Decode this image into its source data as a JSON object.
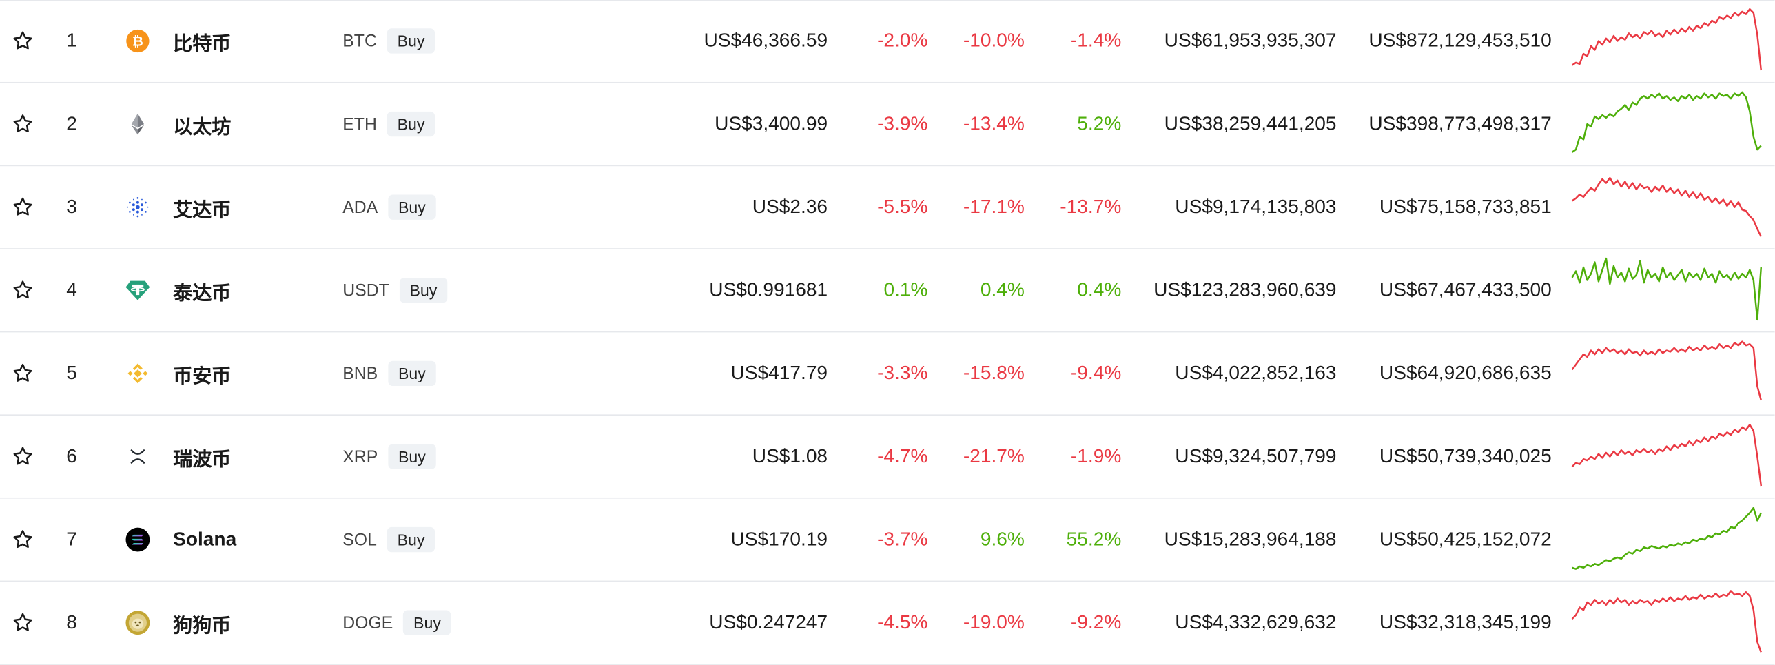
{
  "buy_label": "Buy",
  "colors": {
    "negative": "#ea3943",
    "positive": "#4eaf0a",
    "row_border": "#e6e8ec"
  },
  "rows": [
    {
      "rank": "1",
      "icon": "bitcoin-icon",
      "name": "比特币",
      "symbol": "BTC",
      "price": "US$46,366.59",
      "change_1h": "-2.0%",
      "change_24h": "-10.0%",
      "change_7d": "-1.4%",
      "volume_24h": "US$61,953,935,307",
      "market_cap": "US$872,129,453,510",
      "trend": [
        0.12,
        0.16,
        0.14,
        0.3,
        0.26,
        0.42,
        0.36,
        0.5,
        0.44,
        0.54,
        0.48,
        0.58,
        0.5,
        0.56,
        0.52,
        0.62,
        0.56,
        0.6,
        0.54,
        0.64,
        0.6,
        0.66,
        0.58,
        0.62,
        0.56,
        0.66,
        0.6,
        0.68,
        0.62,
        0.7,
        0.64,
        0.72,
        0.66,
        0.74,
        0.7,
        0.78,
        0.74,
        0.82,
        0.78,
        0.88,
        0.84,
        0.9,
        0.86,
        0.94,
        0.9,
        0.96,
        0.92,
        1.0,
        0.94,
        0.6,
        0.04
      ]
    },
    {
      "rank": "2",
      "icon": "ethereum-icon",
      "name": "以太坊",
      "symbol": "ETH",
      "price": "US$3,400.99",
      "change_1h": "-3.9%",
      "change_24h": "-13.4%",
      "change_7d": "5.2%",
      "volume_24h": "US$38,259,441,205",
      "market_cap": "US$398,773,498,317",
      "trend": [
        0.06,
        0.1,
        0.3,
        0.26,
        0.5,
        0.46,
        0.62,
        0.58,
        0.64,
        0.6,
        0.66,
        0.62,
        0.7,
        0.74,
        0.8,
        0.72,
        0.84,
        0.8,
        0.9,
        0.94,
        0.9,
        0.96,
        0.92,
        0.98,
        0.9,
        0.94,
        0.88,
        0.92,
        0.86,
        0.94,
        0.9,
        0.96,
        0.88,
        0.94,
        0.9,
        0.98,
        0.92,
        0.96,
        0.9,
        0.98,
        0.94,
        0.96,
        0.9,
        0.98,
        0.94,
        1.0,
        0.92,
        0.7,
        0.3,
        0.1,
        0.16
      ]
    },
    {
      "rank": "3",
      "icon": "cardano-icon",
      "name": "艾达币",
      "symbol": "ADA",
      "price": "US$2.36",
      "change_1h": "-5.5%",
      "change_24h": "-17.1%",
      "change_7d": "-13.7%",
      "volume_24h": "US$9,174,135,803",
      "market_cap": "US$75,158,733,851",
      "trend": [
        0.6,
        0.64,
        0.7,
        0.66,
        0.74,
        0.8,
        0.76,
        0.86,
        0.94,
        0.88,
        0.96,
        0.86,
        0.92,
        0.82,
        0.9,
        0.8,
        0.88,
        0.78,
        0.86,
        0.8,
        0.82,
        0.74,
        0.82,
        0.76,
        0.84,
        0.74,
        0.8,
        0.72,
        0.78,
        0.68,
        0.76,
        0.66,
        0.74,
        0.64,
        0.72,
        0.62,
        0.66,
        0.58,
        0.64,
        0.56,
        0.62,
        0.52,
        0.6,
        0.5,
        0.58,
        0.46,
        0.44,
        0.36,
        0.3,
        0.16,
        0.04
      ]
    },
    {
      "rank": "4",
      "icon": "tether-icon",
      "name": "泰达币",
      "symbol": "USDT",
      "price": "US$0.991681",
      "change_1h": "0.1%",
      "change_24h": "0.4%",
      "change_7d": "0.4%",
      "volume_24h": "US$123,283,960,639",
      "market_cap": "US$67,467,433,500",
      "trend": [
        0.7,
        0.8,
        0.62,
        0.86,
        0.66,
        0.76,
        0.94,
        0.64,
        0.82,
        1.0,
        0.6,
        0.88,
        0.7,
        0.78,
        0.64,
        0.84,
        0.68,
        0.74,
        0.96,
        0.62,
        0.82,
        0.7,
        0.76,
        0.64,
        0.86,
        0.7,
        0.78,
        0.66,
        0.74,
        0.82,
        0.64,
        0.78,
        0.7,
        0.76,
        0.66,
        0.84,
        0.7,
        0.76,
        0.62,
        0.8,
        0.7,
        0.74,
        0.66,
        0.78,
        0.68,
        0.76,
        0.7,
        0.82,
        0.66,
        0.04,
        0.86
      ]
    },
    {
      "rank": "5",
      "icon": "binance-icon",
      "name": "币安币",
      "symbol": "BNB",
      "price": "US$417.79",
      "change_1h": "-3.3%",
      "change_24h": "-15.8%",
      "change_7d": "-9.4%",
      "volume_24h": "US$4,022,852,163",
      "market_cap": "US$64,920,686,635",
      "trend": [
        0.56,
        0.64,
        0.72,
        0.8,
        0.76,
        0.86,
        0.8,
        0.88,
        0.82,
        0.9,
        0.84,
        0.88,
        0.82,
        0.86,
        0.8,
        0.88,
        0.82,
        0.84,
        0.78,
        0.86,
        0.8,
        0.84,
        0.8,
        0.88,
        0.82,
        0.86,
        0.84,
        0.9,
        0.84,
        0.88,
        0.84,
        0.92,
        0.86,
        0.9,
        0.86,
        0.94,
        0.88,
        0.92,
        0.88,
        0.96,
        0.9,
        0.94,
        0.9,
        0.98,
        0.94,
        1.0,
        0.94,
        0.96,
        0.9,
        0.3,
        0.08
      ]
    },
    {
      "rank": "6",
      "icon": "xrp-icon",
      "name": "瑞波币",
      "symbol": "XRP",
      "price": "US$1.08",
      "change_1h": "-4.7%",
      "change_24h": "-21.7%",
      "change_7d": "-1.9%",
      "volume_24h": "US$9,324,507,799",
      "market_cap": "US$50,739,340,025",
      "trend": [
        0.34,
        0.4,
        0.38,
        0.46,
        0.44,
        0.5,
        0.46,
        0.54,
        0.48,
        0.56,
        0.5,
        0.58,
        0.52,
        0.6,
        0.54,
        0.58,
        0.52,
        0.6,
        0.56,
        0.62,
        0.56,
        0.6,
        0.54,
        0.62,
        0.58,
        0.66,
        0.6,
        0.68,
        0.64,
        0.7,
        0.66,
        0.74,
        0.68,
        0.76,
        0.72,
        0.8,
        0.74,
        0.82,
        0.78,
        0.86,
        0.82,
        0.88,
        0.84,
        0.92,
        0.88,
        0.96,
        0.92,
        1.0,
        0.9,
        0.5,
        0.04
      ]
    },
    {
      "rank": "7",
      "icon": "solana-icon",
      "name": "Solana",
      "symbol": "SOL",
      "price": "US$170.19",
      "change_1h": "-3.7%",
      "change_24h": "9.6%",
      "change_7d": "55.2%",
      "volume_24h": "US$15,283,964,188",
      "market_cap": "US$50,425,152,072",
      "trend": [
        0.06,
        0.04,
        0.08,
        0.06,
        0.1,
        0.08,
        0.12,
        0.1,
        0.14,
        0.18,
        0.16,
        0.2,
        0.22,
        0.2,
        0.26,
        0.3,
        0.28,
        0.34,
        0.32,
        0.38,
        0.36,
        0.4,
        0.38,
        0.36,
        0.4,
        0.38,
        0.42,
        0.4,
        0.44,
        0.42,
        0.46,
        0.44,
        0.5,
        0.48,
        0.52,
        0.5,
        0.56,
        0.54,
        0.6,
        0.58,
        0.64,
        0.62,
        0.7,
        0.68,
        0.76,
        0.8,
        0.86,
        0.92,
        1.0,
        0.8,
        0.92
      ]
    },
    {
      "rank": "8",
      "icon": "dogecoin-icon",
      "name": "狗狗币",
      "symbol": "DOGE",
      "price": "US$0.247247",
      "change_1h": "-4.5%",
      "change_24h": "-19.0%",
      "change_7d": "-9.2%",
      "volume_24h": "US$4,332,629,632",
      "market_cap": "US$32,318,345,199",
      "trend": [
        0.56,
        0.62,
        0.74,
        0.7,
        0.82,
        0.78,
        0.86,
        0.8,
        0.84,
        0.78,
        0.86,
        0.8,
        0.88,
        0.82,
        0.86,
        0.78,
        0.84,
        0.8,
        0.86,
        0.82,
        0.84,
        0.78,
        0.86,
        0.82,
        0.88,
        0.84,
        0.9,
        0.84,
        0.88,
        0.86,
        0.92,
        0.86,
        0.9,
        0.88,
        0.94,
        0.88,
        0.92,
        0.9,
        0.96,
        0.9,
        0.94,
        0.92,
        1.0,
        0.94,
        0.96,
        0.92,
        0.98,
        0.92,
        0.7,
        0.2,
        0.04
      ]
    }
  ]
}
